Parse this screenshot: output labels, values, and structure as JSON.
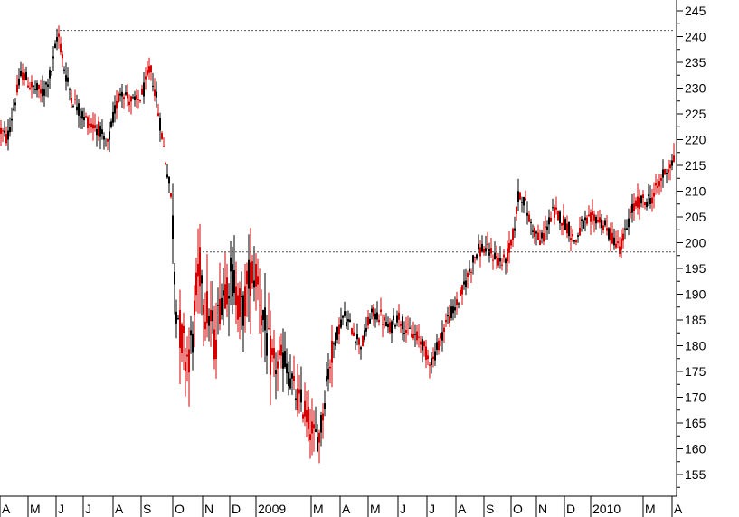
{
  "chart_data": {
    "type": "candlestick",
    "up_color": "#000000",
    "down_color": "#d40000",
    "grid": false,
    "ylim": [
      150,
      250
    ],
    "y_axis_side": "right",
    "y_ticks": [
      155,
      160,
      165,
      170,
      175,
      180,
      185,
      190,
      195,
      200,
      205,
      210,
      215,
      220,
      225,
      230,
      235,
      240,
      245
    ],
    "reference_lines": [
      241.2,
      198.2
    ],
    "x_ticks": [
      "A",
      "M",
      "J",
      "J",
      "A",
      "S",
      "O",
      "N",
      "D",
      "2009",
      "M",
      "A",
      "M",
      "J",
      "J",
      "A",
      "S",
      "O",
      "N",
      "D",
      "2010",
      "M",
      "A"
    ],
    "path_points": [
      [
        0,
        222
      ],
      [
        8,
        220
      ],
      [
        16,
        227
      ],
      [
        24,
        233
      ],
      [
        36,
        230
      ],
      [
        48,
        229
      ],
      [
        58,
        234
      ],
      [
        64,
        241
      ],
      [
        72,
        233
      ],
      [
        80,
        228
      ],
      [
        90,
        225
      ],
      [
        100,
        223
      ],
      [
        110,
        222
      ],
      [
        118,
        218
      ],
      [
        126,
        225
      ],
      [
        134,
        230
      ],
      [
        142,
        228
      ],
      [
        150,
        227
      ],
      [
        158,
        229
      ],
      [
        166,
        234
      ],
      [
        172,
        229
      ],
      [
        178,
        222
      ],
      [
        184,
        215
      ],
      [
        190,
        208
      ],
      [
        194,
        190
      ],
      [
        200,
        182
      ],
      [
        206,
        178
      ],
      [
        212,
        180
      ],
      [
        218,
        192
      ],
      [
        222,
        196
      ],
      [
        226,
        188
      ],
      [
        232,
        186
      ],
      [
        238,
        180
      ],
      [
        244,
        190
      ],
      [
        250,
        192
      ],
      [
        256,
        194
      ],
      [
        262,
        190
      ],
      [
        268,
        186
      ],
      [
        276,
        194
      ],
      [
        284,
        194
      ],
      [
        290,
        186
      ],
      [
        298,
        178
      ],
      [
        306,
        176
      ],
      [
        314,
        178
      ],
      [
        320,
        174
      ],
      [
        328,
        170
      ],
      [
        336,
        168
      ],
      [
        342,
        165
      ],
      [
        348,
        162
      ],
      [
        354,
        163
      ],
      [
        360,
        172
      ],
      [
        366,
        178
      ],
      [
        372,
        182
      ],
      [
        380,
        186
      ],
      [
        390,
        183
      ],
      [
        400,
        180
      ],
      [
        410,
        186
      ],
      [
        420,
        186
      ],
      [
        430,
        183
      ],
      [
        440,
        186
      ],
      [
        450,
        183
      ],
      [
        458,
        182
      ],
      [
        466,
        181
      ],
      [
        472,
        178
      ],
      [
        478,
        177
      ],
      [
        486,
        181
      ],
      [
        494,
        185
      ],
      [
        502,
        187
      ],
      [
        510,
        190
      ],
      [
        518,
        194
      ],
      [
        526,
        198
      ],
      [
        534,
        199
      ],
      [
        542,
        198
      ],
      [
        550,
        197
      ],
      [
        556,
        196
      ],
      [
        562,
        198
      ],
      [
        568,
        202
      ],
      [
        574,
        210
      ],
      [
        580,
        208
      ],
      [
        586,
        204
      ],
      [
        592,
        202
      ],
      [
        598,
        200
      ],
      [
        604,
        203
      ],
      [
        612,
        206
      ],
      [
        620,
        205
      ],
      [
        628,
        203
      ],
      [
        636,
        200
      ],
      [
        642,
        203
      ],
      [
        650,
        204
      ],
      [
        658,
        205
      ],
      [
        666,
        204
      ],
      [
        672,
        202
      ],
      [
        678,
        201
      ],
      [
        684,
        199
      ],
      [
        690,
        201
      ],
      [
        698,
        206
      ],
      [
        706,
        208
      ],
      [
        714,
        208
      ],
      [
        722,
        209
      ],
      [
        730,
        212
      ],
      [
        736,
        214
      ],
      [
        740,
        215
      ],
      [
        745,
        216
      ]
    ]
  }
}
